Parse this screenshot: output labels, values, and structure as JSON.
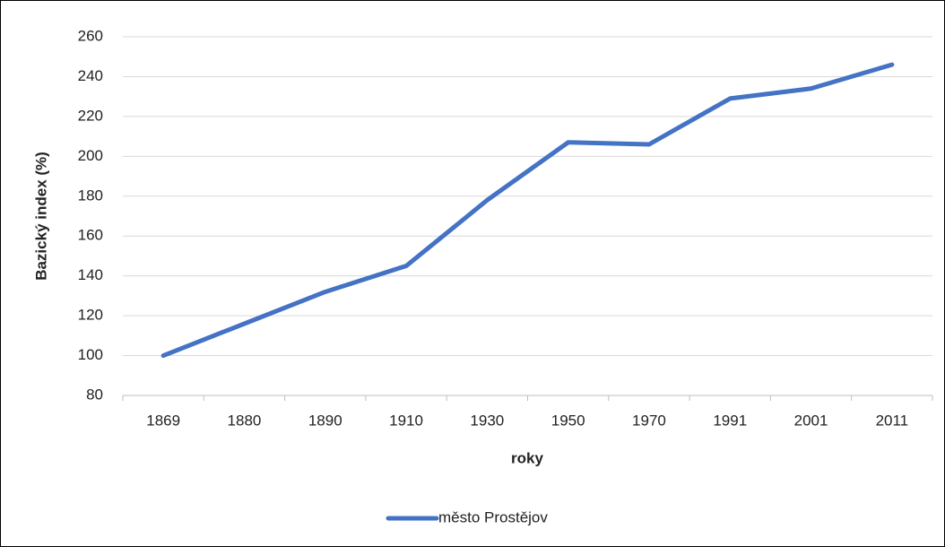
{
  "chart_data": {
    "type": "line",
    "xlabel": "roky",
    "ylabel": "Bazický index (%)",
    "categories": [
      "1869",
      "1880",
      "1890",
      "1910",
      "1930",
      "1950",
      "1970",
      "1991",
      "2001",
      "2011"
    ],
    "series": [
      {
        "name": "město Prostějov",
        "color": "#4472c4",
        "values": [
          100,
          116,
          132,
          145,
          178,
          207,
          206,
          229,
          234,
          246
        ]
      }
    ],
    "ylim": [
      80,
      260
    ],
    "yticks": [
      80,
      100,
      120,
      140,
      160,
      180,
      200,
      220,
      240,
      260
    ],
    "grid": true,
    "legend": "bottom"
  }
}
